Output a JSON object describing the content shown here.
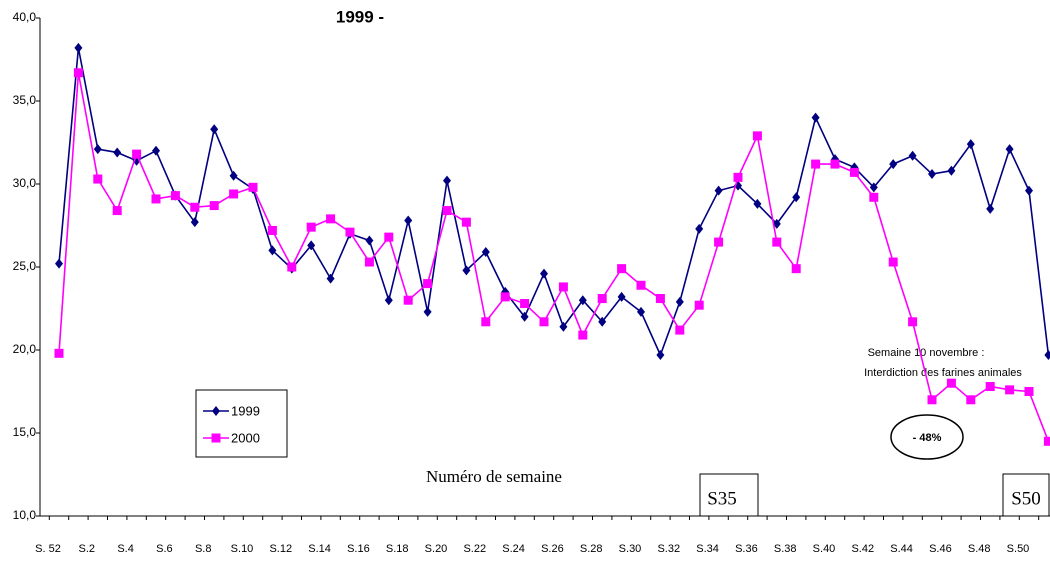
{
  "chart_data": {
    "type": "line",
    "title": "1999 -",
    "x_label": "Numéro de semaine",
    "categories": [
      "S. 52",
      null,
      "S.2",
      null,
      "S.4",
      null,
      "S.6",
      null,
      "S.8",
      null,
      "S.10",
      null,
      "S.12",
      null,
      "S.14",
      null,
      "S.16",
      null,
      "S.18",
      null,
      "S.20",
      null,
      "S.22",
      null,
      "S.24",
      null,
      "S.26",
      null,
      "S.28",
      null,
      "S.30",
      null,
      "S.32",
      null,
      "S.34",
      null,
      "S.36",
      null,
      "S.38",
      null,
      "S.40",
      null,
      "S.42",
      null,
      "S.44",
      null,
      "S.46",
      null,
      "S.48",
      null,
      "S.50",
      null
    ],
    "series": [
      {
        "name": "1999",
        "color": "#000080",
        "marker": "diamond",
        "values": [
          25.2,
          38.2,
          32.1,
          31.9,
          31.4,
          32.0,
          29.3,
          27.7,
          33.3,
          30.5,
          29.7,
          26.0,
          24.9,
          26.3,
          24.3,
          27.0,
          26.6,
          23.0,
          27.8,
          22.3,
          30.2,
          24.8,
          25.9,
          23.5,
          22.0,
          24.6,
          21.4,
          23.0,
          21.7,
          23.2,
          22.3,
          19.7,
          22.9,
          27.3,
          29.6,
          29.9,
          28.8,
          27.6,
          29.2,
          34.0,
          31.5,
          31.0,
          29.8,
          31.2,
          31.7,
          30.6,
          30.8,
          32.4,
          28.5,
          32.1,
          29.6,
          19.7
        ]
      },
      {
        "name": "2000",
        "color": "#ff00ff",
        "marker": "square",
        "values": [
          19.8,
          36.7,
          30.3,
          28.4,
          31.8,
          29.1,
          29.3,
          28.6,
          28.7,
          29.4,
          29.8,
          27.2,
          25.0,
          27.4,
          27.9,
          27.1,
          25.3,
          26.8,
          23.0,
          24.0,
          28.4,
          27.7,
          21.7,
          23.2,
          22.8,
          21.7,
          23.8,
          20.9,
          23.1,
          24.9,
          23.9,
          23.1,
          21.2,
          22.7,
          26.5,
          30.4,
          32.9,
          26.5,
          24.9,
          31.2,
          31.2,
          30.7,
          29.2,
          25.3,
          21.7,
          17.0,
          18.0,
          17.0,
          17.8,
          17.6,
          17.5,
          14.5
        ]
      }
    ],
    "ylim": [
      10,
      40
    ],
    "yticks": [
      {
        "value": 10,
        "label": "10,0"
      },
      {
        "value": 15,
        "label": "15,0"
      },
      {
        "value": 20,
        "label": "20,0"
      },
      {
        "value": 25,
        "label": "25,0"
      },
      {
        "value": 30,
        "label": "30,0"
      },
      {
        "value": 35,
        "label": "35,0"
      },
      {
        "value": 40,
        "label": "40,0"
      }
    ],
    "grid": false,
    "legend": "lower left",
    "annotations": [
      "Semaine 10 novembre :",
      "Interdiction des farines animales",
      "- 48%",
      "S35",
      "S50"
    ]
  }
}
